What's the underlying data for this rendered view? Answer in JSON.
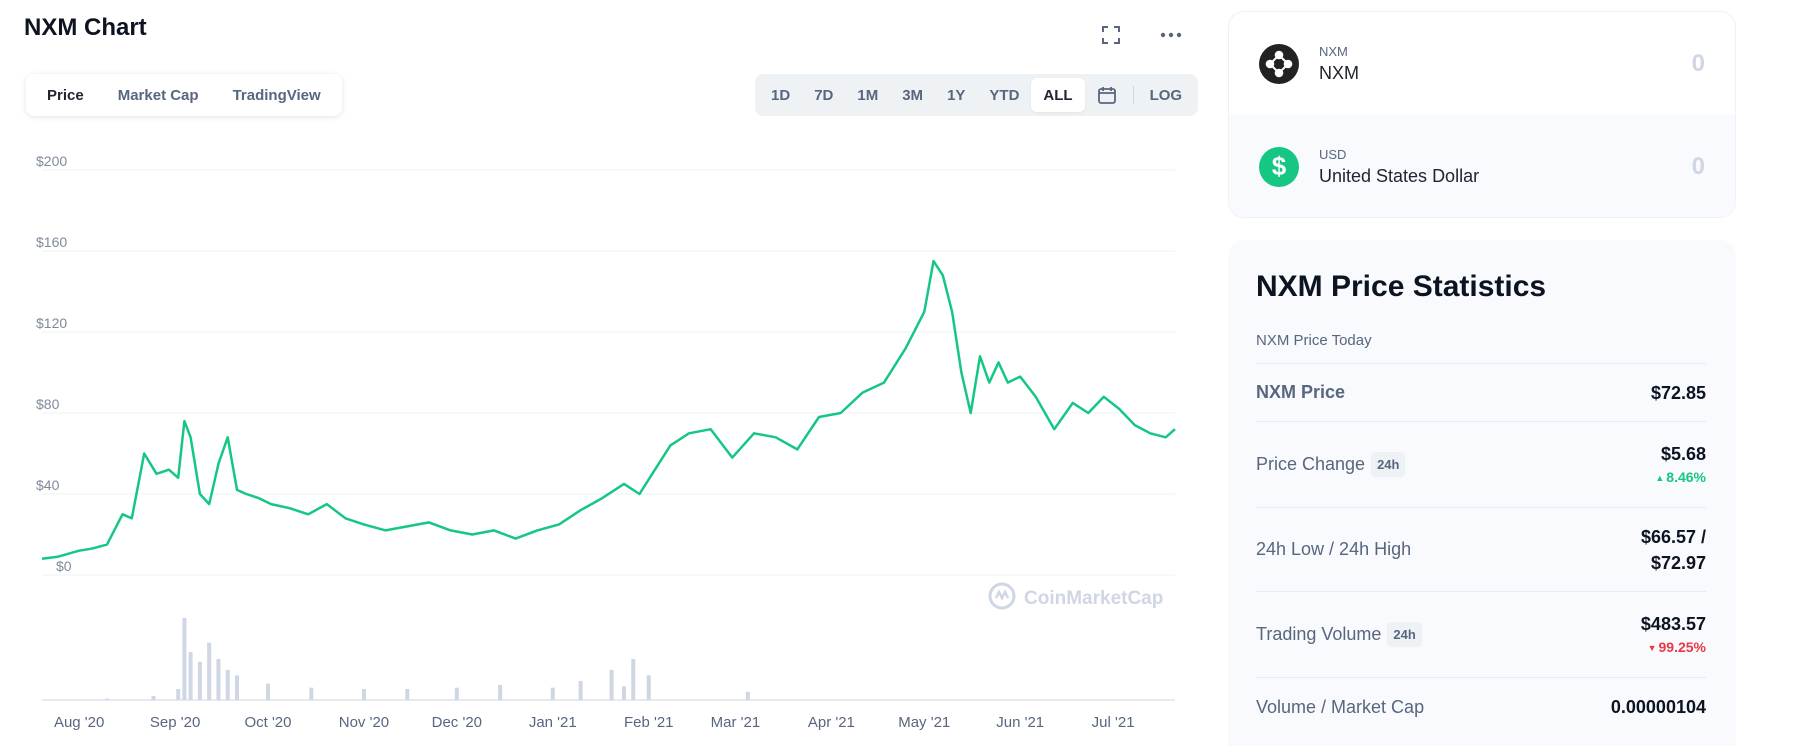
{
  "header": {
    "title": "NXM Chart"
  },
  "icons": {
    "fullscreen": "fullscreen-icon",
    "more": "more-icon",
    "calendar": "calendar-icon"
  },
  "tabs": [
    {
      "label": "Price",
      "active": true
    },
    {
      "label": "Market Cap",
      "active": false
    },
    {
      "label": "TradingView",
      "active": false
    }
  ],
  "ranges": [
    {
      "label": "1D",
      "active": false
    },
    {
      "label": "7D",
      "active": false
    },
    {
      "label": "1M",
      "active": false
    },
    {
      "label": "3M",
      "active": false
    },
    {
      "label": "1Y",
      "active": false
    },
    {
      "label": "YTD",
      "active": false
    },
    {
      "label": "ALL",
      "active": true
    }
  ],
  "log_label": "LOG",
  "watermark": "CoinMarketCap",
  "colors": {
    "line": "#16c784",
    "volume": "#cfd6e4",
    "grid": "#eff2f5",
    "axis_text": "#808a9d"
  },
  "chart_data": {
    "type": "line",
    "title": "",
    "ylim": [
      0,
      200
    ],
    "ytick_labels": [
      "$200",
      "$160",
      "$120",
      "$80",
      "$40",
      "$0"
    ],
    "ytick_values": [
      200,
      160,
      120,
      80,
      40,
      0
    ],
    "xtick_labels": [
      "Aug '20",
      "Sep '20",
      "Oct '20",
      "Nov '20",
      "Dec '20",
      "Jan '21",
      "Feb '21",
      "Mar '21",
      "Apr '21",
      "May '21",
      "Jun '21",
      "Jul '21"
    ],
    "x": [
      "2020-07-20",
      "2020-07-25",
      "2020-08-01",
      "2020-08-05",
      "2020-08-10",
      "2020-08-15",
      "2020-08-18",
      "2020-08-22",
      "2020-08-26",
      "2020-08-30",
      "2020-09-02",
      "2020-09-04",
      "2020-09-06",
      "2020-09-09",
      "2020-09-12",
      "2020-09-15",
      "2020-09-18",
      "2020-09-21",
      "2020-09-24",
      "2020-09-28",
      "2020-10-02",
      "2020-10-08",
      "2020-10-14",
      "2020-10-20",
      "2020-10-26",
      "2020-11-01",
      "2020-11-08",
      "2020-11-15",
      "2020-11-22",
      "2020-11-29",
      "2020-12-06",
      "2020-12-13",
      "2020-12-20",
      "2020-12-27",
      "2021-01-03",
      "2021-01-10",
      "2021-01-17",
      "2021-01-24",
      "2021-01-29",
      "2021-02-03",
      "2021-02-08",
      "2021-02-14",
      "2021-02-21",
      "2021-02-28",
      "2021-03-07",
      "2021-03-14",
      "2021-03-21",
      "2021-03-28",
      "2021-04-04",
      "2021-04-11",
      "2021-04-18",
      "2021-04-25",
      "2021-05-01",
      "2021-05-04",
      "2021-05-07",
      "2021-05-10",
      "2021-05-13",
      "2021-05-16",
      "2021-05-19",
      "2021-05-22",
      "2021-05-25",
      "2021-05-28",
      "2021-06-01",
      "2021-06-06",
      "2021-06-12",
      "2021-06-18",
      "2021-06-23",
      "2021-06-28",
      "2021-07-03",
      "2021-07-08",
      "2021-07-13",
      "2021-07-18",
      "2021-07-21"
    ],
    "series": [
      {
        "values": [
          8,
          9,
          12,
          13,
          15,
          30,
          28,
          60,
          50,
          52,
          48,
          76,
          68,
          40,
          35,
          55,
          68,
          42,
          40,
          38,
          35,
          33,
          30,
          35,
          28,
          25,
          22,
          24,
          26,
          22,
          20,
          22,
          18,
          22,
          25,
          32,
          38,
          45,
          40,
          52,
          64,
          70,
          72,
          58,
          70,
          68,
          62,
          78,
          80,
          90,
          95,
          112,
          130,
          155,
          148,
          130,
          100,
          80,
          108,
          95,
          105,
          95,
          98,
          88,
          72,
          85,
          80,
          88,
          82,
          74,
          70,
          68,
          72
        ]
      }
    ],
    "volume": {
      "x": [
        "2020-08-10",
        "2020-08-25",
        "2020-09-02",
        "2020-09-04",
        "2020-09-06",
        "2020-09-09",
        "2020-09-12",
        "2020-09-15",
        "2020-09-18",
        "2020-09-21",
        "2020-10-01",
        "2020-10-15",
        "2020-11-01",
        "2020-11-15",
        "2020-12-01",
        "2020-12-15",
        "2021-01-01",
        "2021-01-10",
        "2021-01-20",
        "2021-01-24",
        "2021-01-27",
        "2021-02-01",
        "2021-03-05"
      ],
      "values": [
        1,
        3,
        8,
        60,
        35,
        28,
        42,
        30,
        22,
        18,
        12,
        9,
        8,
        8,
        9,
        11,
        9,
        14,
        22,
        10,
        30,
        18,
        6
      ]
    }
  },
  "converter": {
    "nxm": {
      "symbol": "NXM",
      "name": "NXM",
      "value": "0"
    },
    "usd": {
      "symbol": "USD",
      "name": "United States Dollar",
      "value": "0",
      "logo": "$"
    }
  },
  "stats": {
    "title": "NXM Price Statistics",
    "subtitle": "NXM Price Today",
    "rows": [
      {
        "label": "NXM Price",
        "value": "$72.85"
      },
      {
        "label": "Price Change",
        "badge": "24h",
        "value": "$5.68",
        "change": "8.46%",
        "direction": "up"
      },
      {
        "label": "24h Low / 24h High",
        "value_line1": "$66.57 /",
        "value_line2": "$72.97"
      },
      {
        "label": "Trading Volume",
        "badge": "24h",
        "value": "$483.57",
        "change": "99.25%",
        "direction": "down"
      },
      {
        "label": "Volume / Market Cap",
        "value": "0.00000104"
      }
    ]
  }
}
